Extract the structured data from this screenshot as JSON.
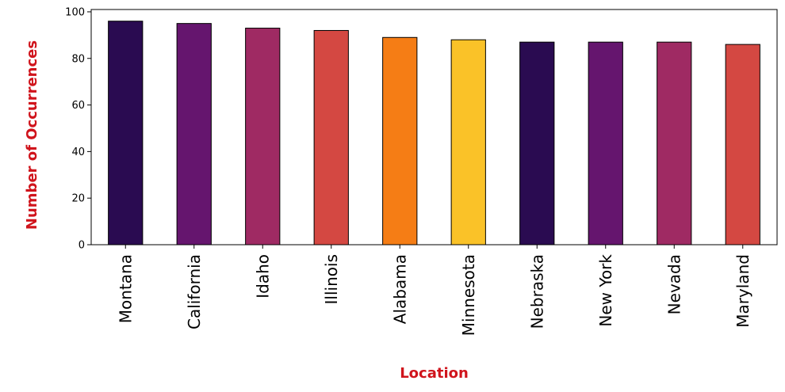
{
  "chart_data": {
    "type": "bar",
    "title": "",
    "xlabel": "Location",
    "ylabel": "Number of Occurrences",
    "categories": [
      "Montana",
      "California",
      "Idaho",
      "Illinois",
      "Alabama",
      "Minnesota",
      "Nebraska",
      "New York",
      "Nevada",
      "Maryland"
    ],
    "values": [
      96,
      95,
      93,
      92,
      89,
      88,
      87,
      87,
      87,
      86
    ],
    "bar_colors": [
      "#2a0b51",
      "#65156e",
      "#9f2a63",
      "#d44842",
      "#f57d15",
      "#fac228",
      "#2a0b51",
      "#65156e",
      "#9f2a63",
      "#d44842"
    ],
    "ylim": [
      0,
      101
    ],
    "yticks": [
      0,
      20,
      40,
      60,
      80,
      100
    ],
    "grid": false,
    "legend": "none",
    "label_color": "#d0141c"
  }
}
